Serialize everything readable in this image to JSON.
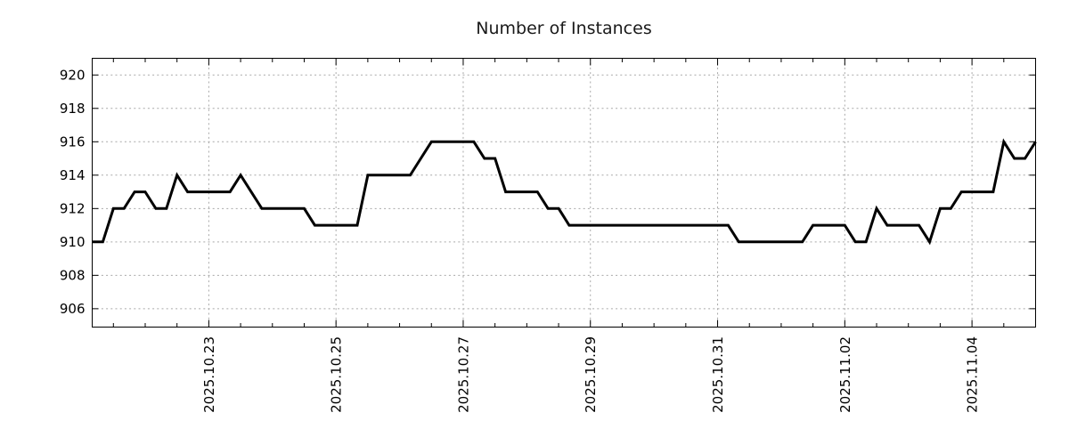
{
  "chart_data": {
    "type": "line",
    "title": "Number of Instances",
    "xlabel": "",
    "ylabel": "",
    "legend_position": "none",
    "x_samples": 90,
    "x_tick_labels": [
      {
        "label": "2025.10.23",
        "index": 11
      },
      {
        "label": "2025.10.25",
        "index": 23
      },
      {
        "label": "2025.10.27",
        "index": 35
      },
      {
        "label": "2025.10.29",
        "index": 47
      },
      {
        "label": "2025.10.31",
        "index": 59
      },
      {
        "label": "2025.11.02",
        "index": 71
      },
      {
        "label": "2025.11.04",
        "index": 83
      }
    ],
    "x_minor_tick_offset": 2,
    "x_minor_tick_every": 3,
    "y_ticks": [
      906,
      908,
      910,
      912,
      914,
      916,
      918,
      920
    ],
    "ylim": [
      904.9,
      921.0
    ],
    "grid": {
      "horizontal_dotted_each_y_tick": true,
      "vertical_dashed_at_labeled_x_ticks": true
    },
    "series": [
      {
        "name": "instances",
        "color": "#000000",
        "line_width": 3,
        "values": [
          910,
          910,
          912,
          912,
          913,
          913,
          912,
          912,
          914,
          913,
          913,
          913,
          913,
          913,
          914,
          913,
          912,
          912,
          912,
          912,
          912,
          911,
          911,
          911,
          911,
          911,
          914,
          914,
          914,
          914,
          914,
          915,
          916,
          916,
          916,
          916,
          916,
          915,
          915,
          913,
          913,
          913,
          913,
          912,
          912,
          911,
          911,
          911,
          911,
          911,
          911,
          911,
          911,
          911,
          911,
          911,
          911,
          911,
          911,
          911,
          911,
          910,
          910,
          910,
          910,
          910,
          910,
          910,
          911,
          911,
          911,
          911,
          910,
          910,
          912,
          911,
          911,
          911,
          911,
          910,
          912,
          912,
          913,
          913,
          913,
          913,
          916,
          915,
          915,
          916
        ]
      }
    ]
  },
  "colors": {
    "background": "#ffffff",
    "grid": "#a8a8a8",
    "axis": "#000000",
    "text": "#000000"
  }
}
